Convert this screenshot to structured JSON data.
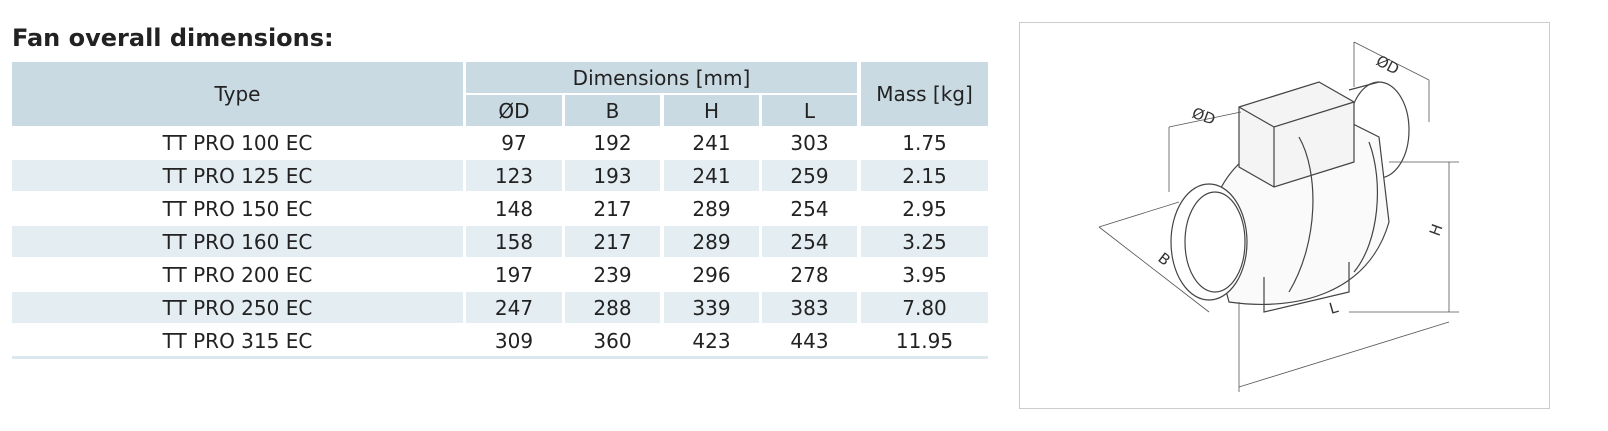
{
  "title": "Fan overall dimensions:",
  "table": {
    "headers": {
      "type": "Type",
      "dimensions": "Dimensions [mm]",
      "mass": "Mass [kg]",
      "sub": [
        "ØD",
        "B",
        "H",
        "L"
      ]
    },
    "rows": [
      [
        "TT PRO 100 EC",
        "97",
        "192",
        "241",
        "303",
        "1.75"
      ],
      [
        "TT PRO 125 EC",
        "123",
        "193",
        "241",
        "259",
        "2.15"
      ],
      [
        "TT PRO 150 EC",
        "148",
        "217",
        "289",
        "254",
        "2.95"
      ],
      [
        "TT PRO 160 EC",
        "158",
        "217",
        "289",
        "254",
        "3.25"
      ],
      [
        "TT PRO 200 EC",
        "197",
        "239",
        "296",
        "278",
        "3.95"
      ],
      [
        "TT PRO 250 EC",
        "247",
        "288",
        "339",
        "383",
        "7.80"
      ],
      [
        "TT PRO 315 EC",
        "309",
        "360",
        "423",
        "443",
        "11.95"
      ]
    ]
  },
  "drawing": {
    "labels": {
      "d_top": "ØD",
      "d_left": "ØD",
      "b": "B",
      "h": "H",
      "l": "L"
    }
  }
}
